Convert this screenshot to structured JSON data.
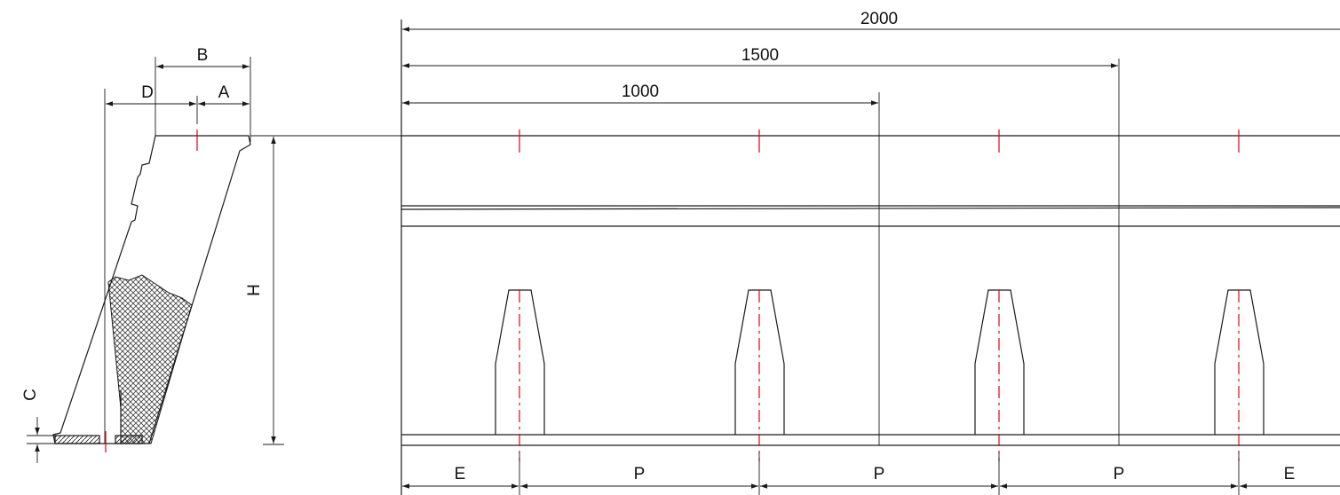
{
  "labels": {
    "dim_b": "B",
    "dim_d": "D",
    "dim_a": "A",
    "dim_h": "H",
    "dim_c": "C",
    "dim_2000": "2000",
    "dim_1500": "1500",
    "dim_1000": "1000",
    "dim_e_left": "E",
    "dim_p1": "P",
    "dim_p2": "P",
    "dim_p3": "P",
    "dim_e_right": "E"
  }
}
